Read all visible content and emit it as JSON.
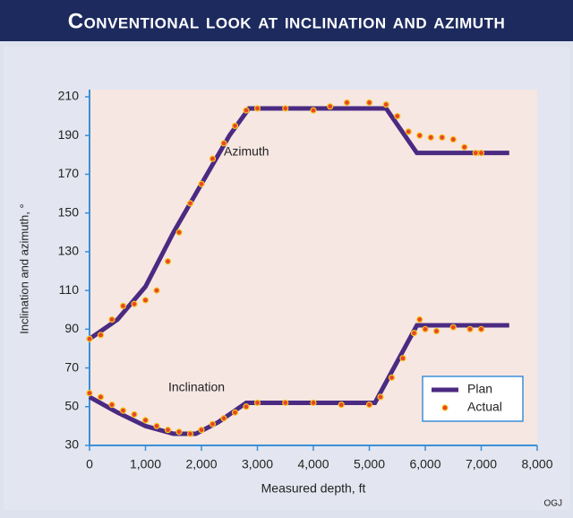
{
  "chart_data": {
    "type": "line",
    "title": "Conventional look at inclination and azimuth",
    "x_label": "Measured depth, ft",
    "y_label": "Inclination and azimuth, °",
    "annotations": [
      "Azimuth",
      "Inclination"
    ],
    "source": "OGJ",
    "xlim": [
      0,
      8000
    ],
    "xticks": [
      0,
      {
        "value": 1000,
        "label": "1,000"
      },
      {
        "value": 2000,
        "label": "2,000"
      },
      {
        "value": 3000,
        "label": "3,000"
      },
      {
        "value": 4000,
        "label": "4,000"
      },
      {
        "value": 5000,
        "label": "5,000"
      },
      {
        "value": 6000,
        "label": "6,000"
      },
      {
        "value": 7000,
        "label": "7,000"
      },
      {
        "value": 8000,
        "label": "8,000"
      }
    ],
    "ylim": [
      30,
      210
    ],
    "yticks": [
      30,
      50,
      70,
      90,
      110,
      130,
      150,
      170,
      190,
      210
    ],
    "legend": "lower right",
    "series": [
      {
        "name": "Plan",
        "color": "#4b2a82",
        "style": "line",
        "x": [
          0,
          500,
          1000,
          1500,
          2000,
          2500,
          2850,
          5300,
          5850,
          7500,
          null,
          0,
          500,
          1000,
          1500,
          1900,
          2300,
          2800,
          5100,
          5850,
          7500
        ],
        "values": [
          85,
          95,
          112,
          140,
          165,
          190,
          204,
          204,
          181,
          181,
          null,
          55,
          47,
          40,
          36,
          36,
          42,
          52,
          52,
          92,
          92
        ]
      },
      {
        "name": "Actual",
        "color": "#e8452c",
        "style": "scatter",
        "x": [
          0,
          200,
          400,
          600,
          800,
          1000,
          1200,
          1400,
          1600,
          1800,
          2000,
          2200,
          2400,
          2600,
          2800,
          3000,
          3500,
          4000,
          4300,
          4600,
          5000,
          5300,
          5500,
          5700,
          5900,
          6100,
          6300,
          6500,
          6700,
          6900,
          7000,
          null,
          0,
          200,
          400,
          600,
          800,
          1000,
          1200,
          1400,
          1600,
          1800,
          2000,
          2200,
          2400,
          2600,
          2800,
          3000,
          3500,
          4000,
          4500,
          5000,
          5200,
          5400,
          5600,
          5800,
          5900,
          6000,
          6200,
          6500,
          6800,
          7000
        ],
        "values": [
          85,
          87,
          95,
          102,
          103,
          105,
          110,
          125,
          140,
          155,
          165,
          178,
          186,
          195,
          203,
          204,
          204,
          203,
          205,
          207,
          207,
          206,
          200,
          192,
          190,
          189,
          189,
          188,
          184,
          181,
          181,
          null,
          57,
          55,
          51,
          48,
          46,
          43,
          40,
          38,
          37,
          36,
          38,
          41,
          44,
          47,
          50,
          52,
          52,
          52,
          51,
          51,
          55,
          65,
          75,
          88,
          95,
          90,
          89,
          91,
          90,
          90
        ]
      }
    ]
  }
}
